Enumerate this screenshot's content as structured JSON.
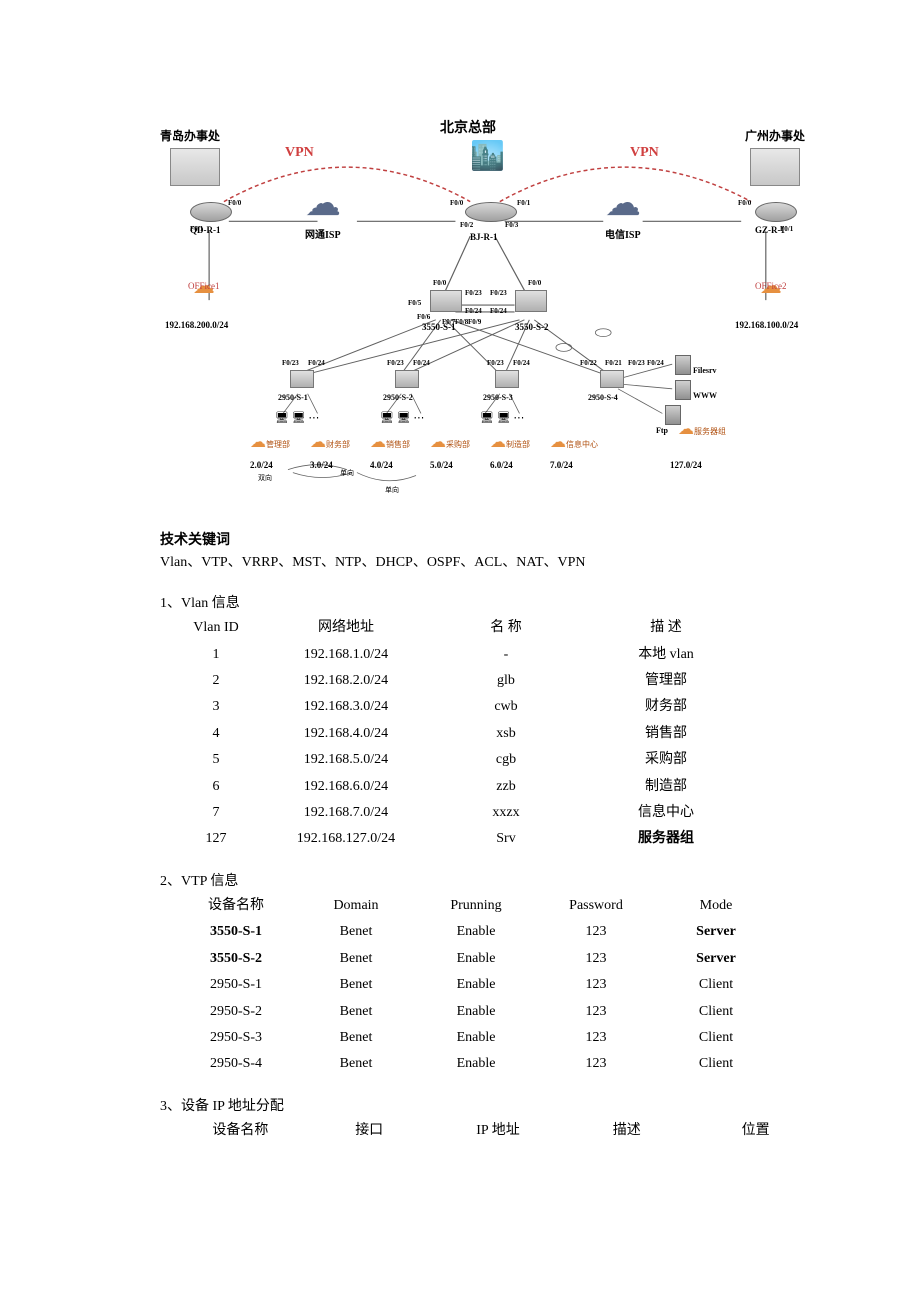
{
  "diagram": {
    "title_center": "北京总部",
    "left_office": "青岛办事处",
    "right_office": "广州办事处",
    "vpn_label": "VPN",
    "isp_left": "网通ISP",
    "isp_right": "电信ISP",
    "router_left": "QD-R-1",
    "router_center": "BJ-R-1",
    "router_right": "GZ-R-1",
    "office1": "OFFice1",
    "office2": "OFFice2",
    "office1_net": "192.168.200.0/24",
    "office2_net": "192.168.100.0/24",
    "core1": "3550-S-1",
    "core2": "3550-S-2",
    "access": [
      "2950-S-1",
      "2950-S-2",
      "2950-S-3",
      "2950-S-4"
    ],
    "servers": [
      "Filesrv",
      "WWW",
      "Ftp"
    ],
    "server_group": "服务器组",
    "dept_names": [
      "管理部",
      "财务部",
      "销售部",
      "采购部",
      "制造部",
      "信息中心"
    ],
    "dept_nets": [
      "2.0/24",
      "3.0/24",
      "4.0/24",
      "5.0/24",
      "6.0/24",
      "7.0/24",
      "127.0/24"
    ],
    "ports": {
      "f00": "F0/0",
      "f01": "F0/1",
      "f02": "F0/2",
      "f03": "F0/3",
      "f05": "F0/5",
      "f06": "F0/6",
      "f07": "F0/7",
      "f08": "F0/8",
      "f09": "F0/9",
      "f021": "F0/21",
      "f022": "F0/22",
      "f023": "F0/23",
      "f024": "F0/24"
    }
  },
  "keywords_title": "技术关键词",
  "keywords_text": "Vlan、VTP、VRRP、MST、NTP、DHCP、OSPF、ACL、NAT、VPN",
  "sections": {
    "vlan": {
      "title": "1、Vlan 信息",
      "headers": [
        "Vlan ID",
        "网络地址",
        "名 称",
        "描 述"
      ],
      "rows": [
        [
          "1",
          "192.168.1.0/24",
          "-",
          "本地 vlan"
        ],
        [
          "2",
          "192.168.2.0/24",
          "glb",
          "管理部"
        ],
        [
          "3",
          "192.168.3.0/24",
          "cwb",
          "财务部"
        ],
        [
          "4",
          "192.168.4.0/24",
          "xsb",
          "销售部"
        ],
        [
          "5",
          "192.168.5.0/24",
          "cgb",
          "采购部"
        ],
        [
          "6",
          "192.168.6.0/24",
          "zzb",
          "制造部"
        ],
        [
          "7",
          "192.168.7.0/24",
          "xxzx",
          "信息中心"
        ],
        [
          "127",
          "192.168.127.0/24",
          "Srv",
          "服务器组"
        ]
      ],
      "bold_last_desc": true
    },
    "vtp": {
      "title": "2、VTP 信息",
      "headers": [
        "设备名称",
        "Domain",
        "Prunning",
        "Password",
        "Mode"
      ],
      "rows": [
        [
          "3550-S-1",
          "Benet",
          "Enable",
          "123",
          "Server"
        ],
        [
          "3550-S-2",
          "Benet",
          "Enable",
          "123",
          "Server"
        ],
        [
          "2950-S-1",
          "Benet",
          "Enable",
          "123",
          "Client"
        ],
        [
          "2950-S-2",
          "Benet",
          "Enable",
          "123",
          "Client"
        ],
        [
          "2950-S-3",
          "Benet",
          "Enable",
          "123",
          "Client"
        ],
        [
          "2950-S-4",
          "Benet",
          "Enable",
          "123",
          "Client"
        ]
      ],
      "bold_device_rows": [
        0,
        1
      ]
    },
    "ip": {
      "title": "3、设备 IP 地址分配",
      "headers": [
        "设备名称",
        "接口",
        "IP 地址",
        "描述",
        "位置"
      ]
    }
  },
  "colors": {
    "text": "#000000",
    "bg": "#ffffff",
    "vpn": "#d04040",
    "cloud_blue": "#5a6a8a",
    "cloud_orange": "#e69040",
    "line": "#606060",
    "vpn_line": "#c04040"
  }
}
